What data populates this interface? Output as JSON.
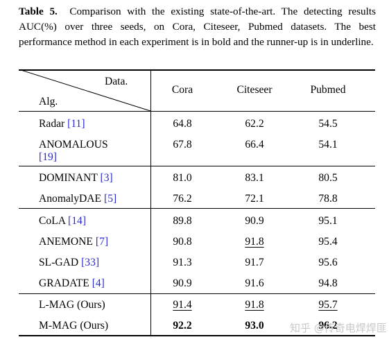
{
  "caption": {
    "label": "Table 5.",
    "text": "Comparison with the existing state-of-the-art. The detecting results AUC(%) over three seeds, on Cora, Citeseer, Pubmed datasets. The best performance method in each experiment is in bold and the runner-up is in underline."
  },
  "header": {
    "diag_top": "Data.",
    "diag_bottom": "Alg.",
    "columns": [
      "Cora",
      "Citeseer",
      "Pubmed"
    ]
  },
  "rows": [
    {
      "name": "Radar",
      "ref": "[11]",
      "values": [
        "64.8",
        "62.2",
        "54.5"
      ]
    },
    {
      "name": "ANOMALOUS",
      "ref": "[19]",
      "values": [
        "67.8",
        "66.4",
        "54.1"
      ]
    },
    {
      "name": "DOMINANT",
      "ref": "[3]",
      "values": [
        "81.0",
        "83.1",
        "80.5"
      ]
    },
    {
      "name": "AnomalyDAE",
      "ref": "[5]",
      "values": [
        "76.2",
        "72.1",
        "78.8"
      ]
    },
    {
      "name": "CoLA",
      "ref": "[14]",
      "values": [
        "89.8",
        "90.9",
        "95.1"
      ]
    },
    {
      "name": "ANEMONE",
      "ref": "[7]",
      "values": [
        "90.8",
        "91.8",
        "95.4"
      ]
    },
    {
      "name": "SL-GAD",
      "ref": "[33]",
      "values": [
        "91.3",
        "91.7",
        "95.6"
      ]
    },
    {
      "name": "GRADATE",
      "ref": "[4]",
      "values": [
        "90.9",
        "91.6",
        "94.8"
      ]
    },
    {
      "name": "L-MAG (Ours)",
      "ref": "",
      "values": [
        "91.4",
        "91.8",
        "95.7"
      ]
    },
    {
      "name": "M-MAG (Ours)",
      "ref": "",
      "values": [
        "92.2",
        "93.0",
        "96.2"
      ]
    }
  ],
  "watermark": "知乎 @传奇电焊焊匪"
}
